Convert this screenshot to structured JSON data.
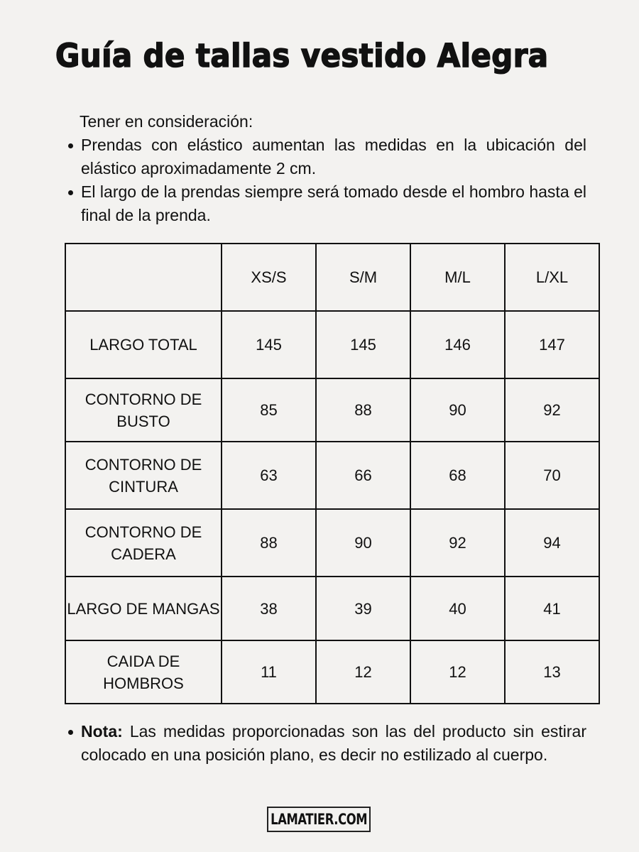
{
  "title": "Guía de tallas vestido Alegra",
  "intro": "Tener en consideración:",
  "bullets": [
    "Prendas con elástico aumentan las medidas en la ubicación del elástico aproximadamente 2 cm.",
    "El largo de la prendas siempre será tomado desde el hombro hasta el final de la prenda."
  ],
  "table": {
    "headers": [
      "",
      "XS/S",
      "S/M",
      "M/L",
      "L/XL"
    ],
    "rows": [
      {
        "label": "LARGO TOTAL",
        "values": [
          "145",
          "145",
          "146",
          "147"
        ]
      },
      {
        "label": "CONTORNO DE BUSTO",
        "values": [
          "85",
          "88",
          "90",
          "92"
        ]
      },
      {
        "label": "CONTORNO DE CINTURA",
        "values": [
          "63",
          "66",
          "68",
          "70"
        ]
      },
      {
        "label": "CONTORNO DE CADERA",
        "values": [
          "88",
          "90",
          "92",
          "94"
        ]
      },
      {
        "label": "LARGO DE MANGAS",
        "values": [
          "38",
          "39",
          "40",
          "41"
        ]
      },
      {
        "label": "CAIDA DE HOMBROS",
        "values": [
          "11",
          "12",
          "12",
          "13"
        ]
      }
    ]
  },
  "note": {
    "label": "Nota:",
    "text": " Las medidas proporcionadas son las del producto sin estirar colocado en una posición plano, es decir no estilizado al cuerpo."
  },
  "logo": "LAMATIER.COM"
}
